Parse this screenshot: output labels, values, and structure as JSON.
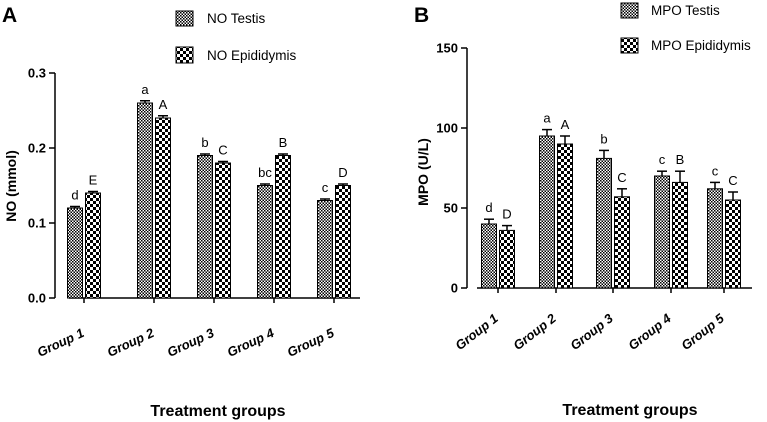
{
  "chart_data": [
    {
      "panel": "A",
      "type": "bar",
      "ylabel": "NO (mmol)",
      "xlabel": "Treatment groups",
      "ylim": [
        0,
        0.3
      ],
      "yticks": [
        0.0,
        0.1,
        0.2,
        0.3
      ],
      "ytick_labels": [
        "0.0",
        "0.1",
        "0.2",
        "0.3"
      ],
      "categories": [
        "Group 1",
        "Group 2",
        "Group 3",
        "Group 4",
        "Group 5"
      ],
      "legend_position": "top-right",
      "series": [
        {
          "name": "NO Testis",
          "pattern": "dense-check",
          "values": [
            0.12,
            0.26,
            0.19,
            0.15,
            0.13
          ],
          "errors": [
            0.002,
            0.003,
            0.002,
            0.002,
            0.002
          ],
          "letters": [
            "d",
            "a",
            "b",
            "bc",
            "c"
          ]
        },
        {
          "name": "NO Epididymis",
          "pattern": "coarse-check",
          "values": [
            0.14,
            0.24,
            0.18,
            0.19,
            0.15
          ],
          "errors": [
            0.002,
            0.003,
            0.002,
            0.002,
            0.002
          ],
          "letters": [
            "E",
            "A",
            "C",
            "B",
            "D"
          ]
        }
      ]
    },
    {
      "panel": "B",
      "type": "bar",
      "ylabel": "MPO (U/L)",
      "xlabel": "Treatment groups",
      "ylim": [
        0,
        150
      ],
      "yticks": [
        0,
        50,
        100,
        150
      ],
      "ytick_labels": [
        "0",
        "50",
        "100",
        "150"
      ],
      "categories": [
        "Group 1",
        "Group 2",
        "Group 3",
        "Group 4",
        "Group 5"
      ],
      "legend_position": "top-right",
      "series": [
        {
          "name": "MPO Testis",
          "pattern": "dense-check",
          "values": [
            40,
            95,
            81,
            70,
            62
          ],
          "errors": [
            3,
            4,
            5,
            3,
            4
          ],
          "letters": [
            "d",
            "a",
            "b",
            "c",
            "c"
          ]
        },
        {
          "name": "MPO Epididymis",
          "pattern": "coarse-check",
          "values": [
            36,
            90,
            57,
            66,
            55
          ],
          "errors": [
            3,
            5,
            5,
            7,
            5
          ],
          "letters": [
            "D",
            "A",
            "C",
            "B",
            "C"
          ]
        }
      ]
    }
  ]
}
